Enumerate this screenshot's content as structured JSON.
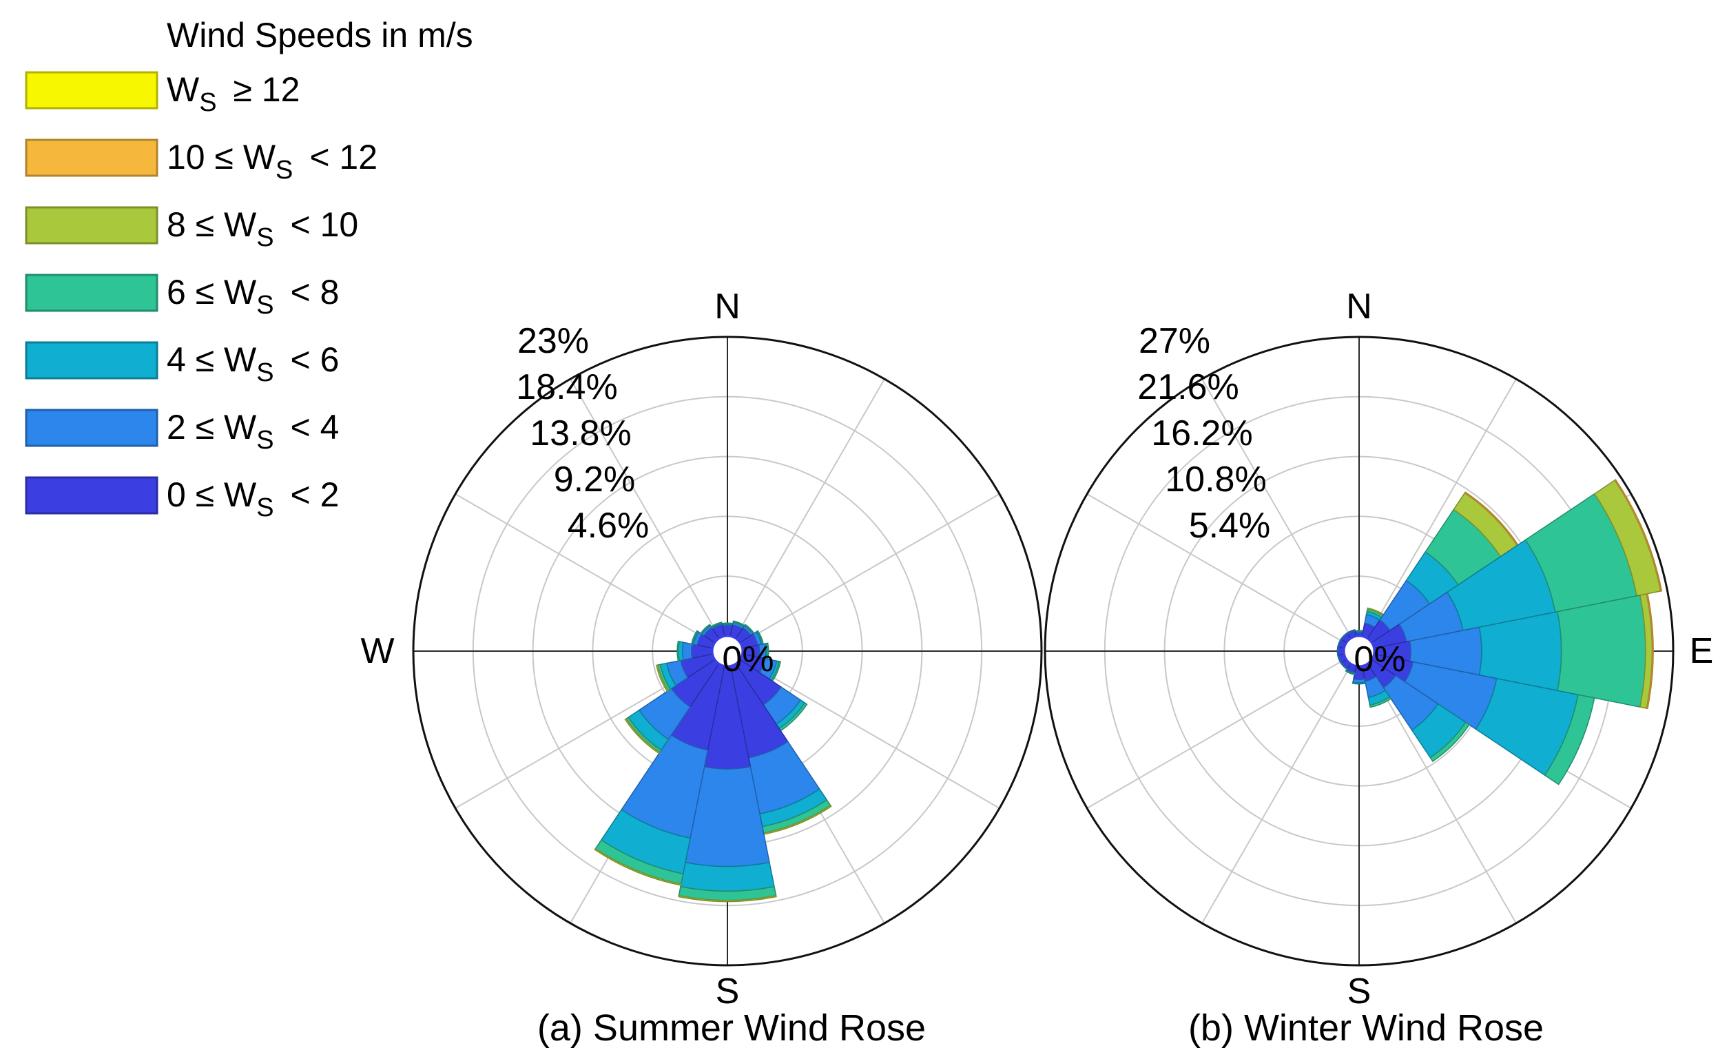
{
  "chart_data": {
    "type": "polar_stacked_bar",
    "legend": {
      "title": "Wind Speeds in m/s",
      "placement": "top-left",
      "entries": [
        {
          "key": "b6",
          "label": "W_S ≥ 12",
          "color": "#f7f700"
        },
        {
          "key": "b5",
          "label": "10 ≤ W_S < 12",
          "color": "#f5b83c"
        },
        {
          "key": "b4",
          "label": "8 ≤ W_S < 10",
          "color": "#a9c83c"
        },
        {
          "key": "b3",
          "label": "6 ≤ W_S < 8",
          "color": "#2ec495"
        },
        {
          "key": "b2",
          "label": "4 ≤ W_S < 6",
          "color": "#10aed0"
        },
        {
          "key": "b1",
          "label": "2 ≤ W_S < 4",
          "color": "#2d86ec"
        },
        {
          "key": "b0",
          "label": "0 ≤ W_S < 2",
          "color": "#3b3fe2"
        }
      ]
    },
    "bins": [
      "0 ≤ W_S < 2",
      "2 ≤ W_S < 4",
      "4 ≤ W_S < 6",
      "6 ≤ W_S < 8",
      "8 ≤ W_S < 10",
      "10 ≤ W_S < 12",
      "W_S ≥ 12"
    ],
    "sector_width_deg": 22.5,
    "panels": [
      {
        "key": "summer",
        "caption": "(a) Summer Wind Rose",
        "rmax": 23,
        "ring_labels": [
          "23%",
          "18.4%",
          "13.8%",
          "9.2%",
          "4.6%"
        ],
        "ring_values": [
          23,
          18.4,
          13.8,
          9.2,
          4.6
        ],
        "center_label": "0%",
        "compass": {
          "N": "N",
          "W": "W",
          "S": "S"
        },
        "sectors": [
          {
            "dir": 0,
            "cum": [
              0.8,
              0.9,
              0.95,
              1.0,
              1.0,
              1.0,
              1.0
            ]
          },
          {
            "dir": 22.5,
            "cum": [
              0.9,
              1.1,
              1.15,
              1.2,
              1.2,
              1.2,
              1.2
            ]
          },
          {
            "dir": 45,
            "cum": [
              1.0,
              1.2,
              1.25,
              1.3,
              1.3,
              1.3,
              1.3
            ]
          },
          {
            "dir": 67.5,
            "cum": [
              1.2,
              1.5,
              1.6,
              1.65,
              1.65,
              1.65,
              1.65
            ]
          },
          {
            "dir": 90,
            "cum": [
              1.3,
              1.8,
              1.9,
              2.0,
              2.0,
              2.0,
              2.0
            ]
          },
          {
            "dir": 112.5,
            "cum": [
              1.8,
              2.7,
              2.9,
              3.0,
              3.0,
              3.0,
              3.0
            ]
          },
          {
            "dir": 135,
            "cum": [
              3.8,
              5.6,
              6.0,
              6.2,
              6.2,
              6.2,
              6.2
            ]
          },
          {
            "dir": 157.5,
            "cum": [
              7.2,
              11.6,
              12.6,
              13.1,
              13.2,
              13.2,
              13.2
            ]
          },
          {
            "dir": 180,
            "cum": [
              7.9,
              15.4,
              17.3,
              18.0,
              18.1,
              18.1,
              18.1
            ]
          },
          {
            "dir": 202.5,
            "cum": [
              6.6,
              13.5,
              16.3,
              17.1,
              17.2,
              17.2,
              17.2
            ]
          },
          {
            "dir": 225,
            "cum": [
              4.0,
              7.0,
              8.0,
              8.2,
              8.3,
              8.3,
              8.3
            ]
          },
          {
            "dir": 247.5,
            "cum": [
              2.5,
              3.6,
              4.1,
              4.3,
              4.4,
              4.4,
              4.4
            ]
          },
          {
            "dir": 270,
            "cum": [
              1.6,
              2.3,
              2.6,
              2.7,
              2.7,
              2.7,
              2.7
            ]
          },
          {
            "dir": 292.5,
            "cum": [
              1.2,
              1.5,
              1.6,
              1.65,
              1.65,
              1.65,
              1.65
            ]
          },
          {
            "dir": 315,
            "cum": [
              1.0,
              1.2,
              1.25,
              1.3,
              1.3,
              1.3,
              1.3
            ]
          },
          {
            "dir": 337.5,
            "cum": [
              0.9,
              1.0,
              1.05,
              1.1,
              1.1,
              1.1,
              1.1
            ]
          }
        ]
      },
      {
        "key": "winter",
        "caption": "(b) Winter Wind Rose",
        "rmax": 27,
        "ring_labels": [
          "27%",
          "21.6%",
          "16.2%",
          "10.8%",
          "5.4%"
        ],
        "ring_values": [
          27,
          21.6,
          16.2,
          10.8,
          5.4
        ],
        "center_label": "0%",
        "compass": {
          "N": "N",
          "E": "E",
          "S": "S"
        },
        "sectors": [
          {
            "dir": 0,
            "cum": [
              0.3,
              0.4,
              0.45,
              0.5,
              0.5,
              0.5,
              0.5
            ]
          },
          {
            "dir": 22.5,
            "cum": [
              1.2,
              2.0,
              2.3,
              2.5,
              2.6,
              2.6,
              2.6
            ]
          },
          {
            "dir": 45,
            "cum": [
              2.0,
              6.3,
              9.4,
              14.0,
              15.8,
              15.9,
              15.9
            ]
          },
          {
            "dir": 67.5,
            "cum": [
              3.0,
              8.2,
              16.7,
              24.2,
              26.4,
              26.5,
              26.5
            ]
          },
          {
            "dir": 90,
            "cum": [
              3.3,
              9.7,
              16.9,
              24.5,
              25.1,
              25.2,
              25.2
            ]
          },
          {
            "dir": 112.5,
            "cum": [
              3.6,
              11.3,
              18.8,
              20.3,
              20.3,
              20.3,
              20.3
            ]
          },
          {
            "dir": 135,
            "cum": [
              2.6,
              7.2,
              10.2,
              10.6,
              10.6,
              10.6,
              10.6
            ]
          },
          {
            "dir": 157.5,
            "cum": [
              1.4,
              2.9,
              3.6,
              3.8,
              3.8,
              3.8,
              3.8
            ]
          },
          {
            "dir": 180,
            "cum": [
              1.2,
              1.5,
              1.6,
              1.6,
              1.6,
              1.6,
              1.6
            ]
          },
          {
            "dir": 202.5,
            "cum": [
              0.6,
              0.7,
              0.75,
              0.8,
              0.8,
              0.8,
              0.8
            ]
          },
          {
            "dir": 225,
            "cum": [
              0.5,
              0.6,
              0.6,
              0.6,
              0.6,
              0.6,
              0.6
            ]
          },
          {
            "dir": 247.5,
            "cum": [
              0.5,
              0.6,
              0.6,
              0.6,
              0.6,
              0.6,
              0.6
            ]
          },
          {
            "dir": 270,
            "cum": [
              0.5,
              0.6,
              0.6,
              0.6,
              0.6,
              0.6,
              0.6
            ]
          },
          {
            "dir": 292.5,
            "cum": [
              0.5,
              0.6,
              0.6,
              0.6,
              0.6,
              0.6,
              0.6
            ]
          },
          {
            "dir": 315,
            "cum": [
              0.5,
              0.6,
              0.6,
              0.6,
              0.6,
              0.6,
              0.6
            ]
          },
          {
            "dir": 337.5,
            "cum": [
              0.5,
              0.6,
              0.6,
              0.6,
              0.6,
              0.6,
              0.6
            ]
          }
        ]
      }
    ]
  }
}
